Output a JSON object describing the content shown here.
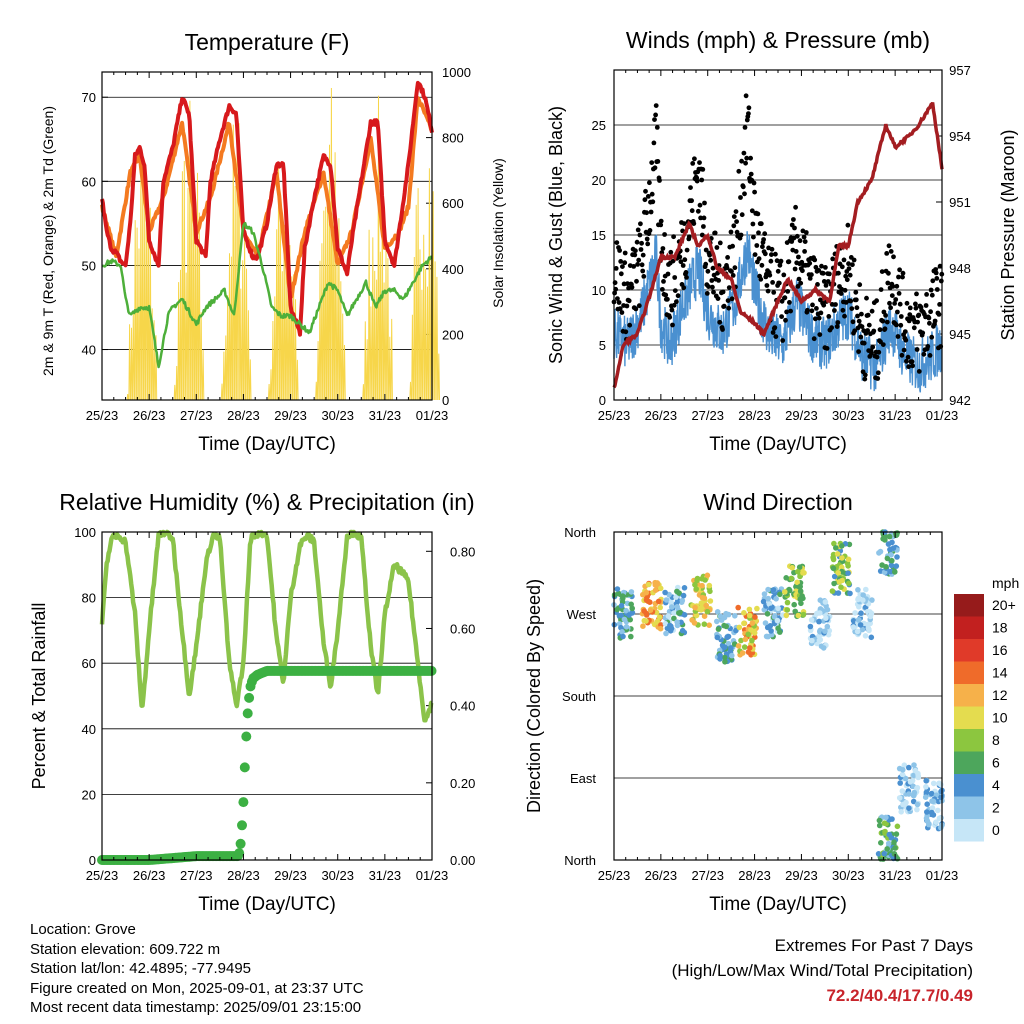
{
  "panels": {
    "temperature": {
      "title": "Temperature (F)",
      "ylabel_left": "2m & 9m T (Red, Orange) & 2m Td (Green)",
      "ylabel_right": "Solar Insolation (Yellow)",
      "xlabel": "Time (Day/UTC)"
    },
    "winds": {
      "title": "Winds (mph) & Pressure (mb)",
      "ylabel_left": "Sonic Wind & Gust (Blue, Black)",
      "ylabel_right": "Station Pressure (Maroon)",
      "xlabel": "Time (Day/UTC)"
    },
    "humidity": {
      "title": "Relative Humidity (%) & Precipitation (in)",
      "ylabel_left": "Percent & Total Rainfall",
      "xlabel": "Time (Day/UTC)"
    },
    "direction": {
      "title": "Wind Direction",
      "ylabel_left": "Direction (Colored By Speed)",
      "xlabel": "Time (Day/UTC)",
      "colorbar_title": "mph"
    }
  },
  "info": {
    "location": "Location: Grove",
    "elevation": "Station elevation: 609.722 m",
    "latlon": "Station lat/lon: 42.4895; -77.9495",
    "created": "Figure created on Mon, 2025-09-01, at 23:37 UTC",
    "recent": "Most recent data timestamp: 2025/09/01 23:15:00"
  },
  "extremes": {
    "line1": "Extremes For Past 7 Days",
    "line2": "(High/Low/Max Wind/Total Precipitation)",
    "values": "72.2/40.4/17.7/0.49"
  },
  "colors": {
    "temp_2m": "#d7191c",
    "temp_9m": "#f47a20",
    "dewpoint": "#4daf3a",
    "solar": "#f7d64a",
    "gust": "#000000",
    "wind": "#4a90d0",
    "pressure": "#a31d21",
    "rh": "#8bc34a",
    "precip": "#3cb043"
  },
  "chart_data": [
    {
      "id": "temperature",
      "type": "line",
      "x_ticks": [
        "25/23",
        "26/23",
        "27/23",
        "28/23",
        "29/23",
        "30/23",
        "31/23",
        "01/23"
      ],
      "ylim": [
        34,
        73
      ],
      "y_ticks": [
        40,
        50,
        60,
        70
      ],
      "y2lim": [
        0,
        1000
      ],
      "y2_ticks": [
        0,
        200,
        400,
        600,
        800,
        1000
      ],
      "grid": "horizontal",
      "series": [
        {
          "name": "2m T",
          "x": [
            0,
            0.1,
            0.2,
            0.3,
            0.4,
            0.5,
            0.6,
            0.7,
            0.8,
            0.9,
            1.0,
            1.2,
            1.3,
            1.5,
            1.7,
            1.85,
            2.0,
            2.2,
            2.3,
            2.5,
            2.7,
            2.85,
            3.0,
            3.2,
            3.3,
            3.5,
            3.7,
            3.85,
            4.0,
            4.2,
            4.3,
            4.5,
            4.7,
            4.85,
            5.0,
            5.2,
            5.3,
            5.5,
            5.7,
            5.85,
            6.0,
            6.2,
            6.3,
            6.5,
            6.7,
            6.85,
            7.0
          ],
          "y": [
            58,
            54,
            52,
            51.5,
            50.5,
            50,
            55,
            63,
            64,
            62,
            53,
            50,
            60,
            64,
            70,
            68,
            53,
            51,
            60,
            65,
            69,
            68,
            54,
            51,
            51,
            55,
            62,
            62,
            45,
            42,
            52,
            58,
            63,
            62,
            52,
            49,
            53,
            60,
            67,
            67,
            53,
            50,
            54,
            62,
            72,
            70,
            66
          ]
        },
        {
          "name": "9m T",
          "x": [
            0,
            0.3,
            0.6,
            0.8,
            1.0,
            1.3,
            1.7,
            2.0,
            2.3,
            2.7,
            3.0,
            3.3,
            3.7,
            4.0,
            4.3,
            4.7,
            5.0,
            5.3,
            5.7,
            6.0,
            6.3,
            6.5,
            6.7,
            7.0
          ],
          "y": [
            57,
            51,
            61,
            63,
            54,
            58,
            67,
            54,
            58,
            67,
            54,
            51,
            61,
            46,
            54,
            61,
            50,
            54,
            65,
            52,
            54,
            57,
            70,
            66
          ]
        },
        {
          "name": "2m Td",
          "x": [
            0,
            0.2,
            0.4,
            0.5,
            0.6,
            0.8,
            1.0,
            1.2,
            1.4,
            1.5,
            1.7,
            2.0,
            2.2,
            2.4,
            2.6,
            2.8,
            3.0,
            3.2,
            3.4,
            3.6,
            3.8,
            4.0,
            4.2,
            4.4,
            4.6,
            4.8,
            5.0,
            5.2,
            5.4,
            5.6,
            5.8,
            6.0,
            6.2,
            6.4,
            6.6,
            6.8,
            7.0
          ],
          "y": [
            50,
            50.5,
            50,
            46,
            44,
            45,
            45,
            38,
            44,
            45,
            46,
            43,
            45,
            46,
            47,
            44,
            55,
            54,
            50,
            45,
            44,
            44,
            43,
            42,
            45,
            48,
            47,
            44,
            46,
            48,
            45,
            47,
            47,
            46,
            48,
            50,
            51
          ]
        },
        {
          "name": "Solar Insolation",
          "axis": "y2",
          "peaks": [
            {
              "x": 0.85,
              "y": 870
            },
            {
              "x": 1.85,
              "y": 960
            },
            {
              "x": 2.85,
              "y": 930
            },
            {
              "x": 3.85,
              "y": 870
            },
            {
              "x": 4.85,
              "y": 990
            },
            {
              "x": 5.85,
              "y": 930
            },
            {
              "x": 6.85,
              "y": 1000
            }
          ]
        }
      ]
    },
    {
      "id": "winds",
      "type": "line",
      "x_ticks": [
        "25/23",
        "26/23",
        "27/23",
        "28/23",
        "29/23",
        "30/23",
        "31/23",
        "01/23"
      ],
      "ylim": [
        0,
        30
      ],
      "y_ticks": [
        0,
        5,
        10,
        15,
        20,
        25
      ],
      "y2lim": [
        942,
        957
      ],
      "y2_ticks": [
        942,
        945,
        948,
        951,
        954,
        957
      ],
      "grid": "horizontal",
      "series": [
        {
          "name": "Sonic Wind",
          "x": [
            0,
            0.3,
            0.6,
            0.9,
            1.0,
            1.2,
            1.5,
            1.8,
            2.0,
            2.3,
            2.6,
            2.85,
            3.0,
            3.3,
            3.6,
            3.9,
            4.2,
            4.5,
            4.8,
            5.0,
            5.3,
            5.6,
            5.9,
            6.2,
            6.5,
            6.8,
            7.0
          ],
          "y": [
            6,
            5,
            8,
            13,
            7,
            5,
            9,
            12,
            8,
            6,
            9,
            14,
            10,
            6,
            5,
            9,
            6,
            5,
            7,
            8,
            4,
            3,
            7,
            4,
            3,
            4,
            5
          ]
        },
        {
          "name": "Gust",
          "x": [
            0,
            0.3,
            0.6,
            0.9,
            1.0,
            1.2,
            1.5,
            1.8,
            2.0,
            2.3,
            2.6,
            2.85,
            3.0,
            3.3,
            3.6,
            3.9,
            4.2,
            4.5,
            4.8,
            5.0,
            5.3,
            5.6,
            5.9,
            6.2,
            6.5,
            6.8,
            7.0
          ],
          "y": [
            12,
            9,
            13,
            23,
            14,
            10,
            14,
            21,
            13,
            10,
            14,
            25,
            16,
            10,
            9,
            14,
            10,
            8,
            11,
            12,
            6,
            5,
            12,
            7,
            6,
            8,
            9
          ]
        },
        {
          "name": "Station Pressure",
          "axis": "y2",
          "x": [
            0,
            0.2,
            0.5,
            0.8,
            1.0,
            1.3,
            1.6,
            1.8,
            2.0,
            2.2,
            2.5,
            2.7,
            3.0,
            3.2,
            3.5,
            3.7,
            4.0,
            4.3,
            4.6,
            4.8,
            5.0,
            5.2,
            5.5,
            5.8,
            6.0,
            6.3,
            6.5,
            6.8,
            7.0
          ],
          "y": [
            942.5,
            944.5,
            945,
            947,
            948.5,
            948.5,
            950,
            949,
            949.5,
            948,
            947.5,
            946,
            945.5,
            945,
            946.5,
            947.5,
            946.5,
            947,
            946.5,
            949,
            949,
            951,
            952,
            954.5,
            953.5,
            954,
            954.5,
            955.5,
            952.5
          ]
        }
      ]
    },
    {
      "id": "humidity",
      "type": "line",
      "x_ticks": [
        "25/23",
        "26/23",
        "27/23",
        "28/23",
        "29/23",
        "30/23",
        "31/23",
        "01/23"
      ],
      "ylim": [
        0,
        100
      ],
      "y_ticks": [
        0,
        20,
        40,
        60,
        80,
        100
      ],
      "y2lim": [
        0,
        0.85
      ],
      "y2_ticks": [
        "0.00",
        "0.20",
        "0.40",
        "0.60",
        "0.80"
      ],
      "grid": "horizontal",
      "series": [
        {
          "name": "Relative Humidity",
          "x": [
            0,
            0.1,
            0.2,
            0.35,
            0.5,
            0.7,
            0.85,
            1.0,
            1.2,
            1.35,
            1.5,
            1.7,
            1.85,
            2.0,
            2.2,
            2.35,
            2.5,
            2.7,
            2.85,
            3.0,
            3.15,
            3.35,
            3.5,
            3.7,
            3.85,
            4.0,
            4.2,
            4.35,
            4.5,
            4.7,
            4.85,
            5.0,
            5.2,
            5.35,
            5.5,
            5.7,
            5.85,
            6.0,
            6.2,
            6.35,
            6.5,
            6.7,
            6.85,
            7.0
          ],
          "y": [
            72,
            90,
            98,
            99,
            97,
            75,
            45,
            70,
            99,
            100,
            98,
            70,
            50,
            65,
            90,
            99,
            98,
            60,
            47,
            60,
            98,
            100,
            99,
            68,
            54,
            80,
            96,
            99,
            97,
            66,
            53,
            70,
            99,
            100,
            98,
            65,
            50,
            75,
            90,
            88,
            85,
            60,
            42,
            48
          ]
        },
        {
          "name": "Total Rainfall",
          "axis": "y2",
          "x": [
            0,
            1,
            2,
            2.9,
            2.95,
            3.0,
            3.05,
            3.1,
            3.15,
            3.2,
            3.3,
            3.5,
            4,
            5,
            6,
            7
          ],
          "y": [
            0,
            0,
            0.01,
            0.01,
            0.05,
            0.15,
            0.3,
            0.4,
            0.45,
            0.47,
            0.48,
            0.49,
            0.49,
            0.49,
            0.49,
            0.49
          ]
        }
      ]
    },
    {
      "id": "direction",
      "type": "scatter",
      "x_ticks": [
        "25/23",
        "26/23",
        "27/23",
        "28/23",
        "29/23",
        "30/23",
        "31/23",
        "01/23"
      ],
      "y_ticks": [
        "North",
        "East",
        "South",
        "West",
        "North"
      ],
      "ylim": [
        0,
        360
      ],
      "grid": "horizontal",
      "colorbar": {
        "labels": [
          "0",
          "2",
          "4",
          "6",
          "8",
          "10",
          "12",
          "14",
          "16",
          "18",
          "20+"
        ],
        "colors": [
          "#c6e6f7",
          "#8ec4e8",
          "#4a90d0",
          "#4da65c",
          "#8cc63f",
          "#e4dc4f",
          "#f6b14a",
          "#ef6b2a",
          "#e03a29",
          "#c2201f",
          "#961b1b"
        ]
      },
      "clusters": [
        {
          "x": 0.2,
          "y": 270,
          "speed": 5
        },
        {
          "x": 0.8,
          "y": 280,
          "speed": 13
        },
        {
          "x": 1.3,
          "y": 275,
          "speed": 4
        },
        {
          "x": 1.85,
          "y": 285,
          "speed": 11
        },
        {
          "x": 2.4,
          "y": 245,
          "speed": 5
        },
        {
          "x": 2.85,
          "y": 250,
          "speed": 12
        },
        {
          "x": 3.4,
          "y": 270,
          "speed": 4
        },
        {
          "x": 3.85,
          "y": 295,
          "speed": 9
        },
        {
          "x": 4.4,
          "y": 260,
          "speed": 2
        },
        {
          "x": 4.85,
          "y": 320,
          "speed": 8
        },
        {
          "x": 5.3,
          "y": 270,
          "speed": 2
        },
        {
          "x": 5.85,
          "y": 340,
          "speed": 5
        },
        {
          "x": 5.85,
          "y": 20,
          "speed": 6
        },
        {
          "x": 6.3,
          "y": 80,
          "speed": 2
        },
        {
          "x": 6.85,
          "y": 60,
          "speed": 3
        }
      ]
    }
  ]
}
